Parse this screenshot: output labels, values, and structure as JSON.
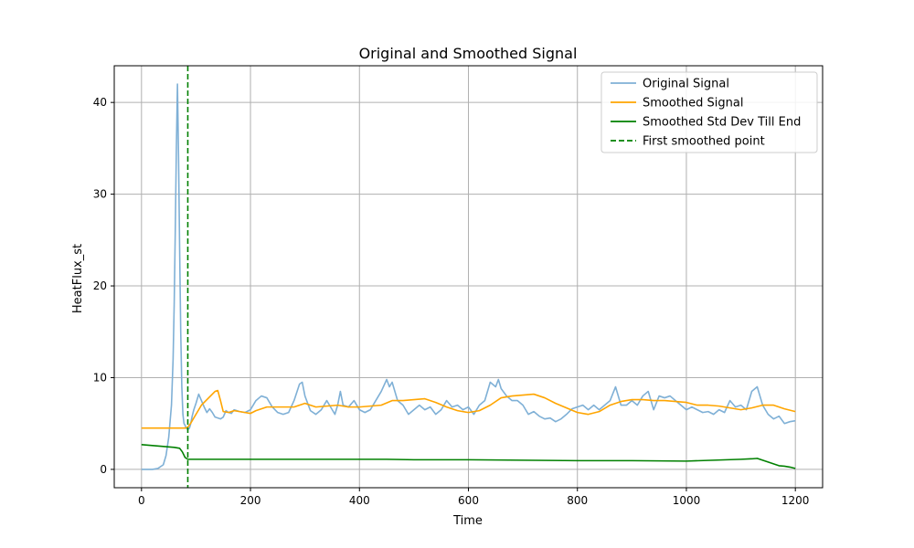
{
  "chart_data": {
    "type": "line",
    "title": "Original and Smoothed Signal",
    "xlabel": "Time",
    "ylabel": "HeatFlux_st",
    "xlim": [
      -50,
      1250
    ],
    "ylim": [
      -2,
      44
    ],
    "xticks": [
      0,
      200,
      400,
      600,
      800,
      1000,
      1200
    ],
    "yticks": [
      0,
      10,
      20,
      30,
      40
    ],
    "grid": true,
    "legend_position": "top-right",
    "series": [
      {
        "name": "Original Signal",
        "color": "#7fb0d6",
        "style": "solid",
        "x": [
          0,
          10,
          20,
          30,
          40,
          45,
          50,
          55,
          58,
          60,
          62,
          64,
          66,
          68,
          70,
          72,
          74,
          76,
          78,
          80,
          82,
          84,
          86,
          88,
          90,
          93,
          96,
          100,
          105,
          110,
          115,
          120,
          125,
          130,
          135,
          140,
          145,
          150,
          155,
          160,
          165,
          170,
          180,
          190,
          200,
          210,
          220,
          230,
          240,
          250,
          260,
          270,
          280,
          290,
          295,
          300,
          305,
          310,
          320,
          330,
          340,
          350,
          355,
          360,
          365,
          370,
          380,
          390,
          400,
          410,
          420,
          430,
          440,
          450,
          455,
          460,
          470,
          480,
          490,
          500,
          510,
          520,
          530,
          540,
          550,
          560,
          570,
          580,
          590,
          600,
          610,
          620,
          630,
          640,
          650,
          655,
          660,
          670,
          680,
          690,
          700,
          710,
          720,
          730,
          740,
          750,
          760,
          770,
          780,
          790,
          800,
          810,
          820,
          830,
          840,
          850,
          860,
          870,
          880,
          890,
          900,
          910,
          920,
          930,
          940,
          950,
          960,
          970,
          980,
          990,
          1000,
          1010,
          1020,
          1030,
          1040,
          1050,
          1060,
          1070,
          1080,
          1090,
          1100,
          1110,
          1120,
          1130,
          1140,
          1150,
          1160,
          1170,
          1180,
          1190,
          1200
        ],
        "values": [
          0,
          0,
          0,
          0.1,
          0.5,
          1.5,
          3.5,
          7,
          12,
          18,
          26,
          35,
          42,
          34,
          24,
          15,
          9,
          6,
          5,
          4.8,
          4.5,
          4.4,
          4.4,
          4.5,
          4.9,
          5.8,
          6.5,
          7.2,
          8.2,
          7.5,
          6.8,
          6.2,
          6.6,
          6.2,
          5.7,
          5.6,
          5.5,
          5.7,
          6.4,
          6.2,
          6.1,
          6.5,
          6.3,
          6.2,
          6.5,
          7.5,
          8.0,
          7.8,
          6.8,
          6.2,
          6.0,
          6.2,
          7.5,
          9.3,
          9.5,
          8.0,
          7.2,
          6.4,
          6.0,
          6.5,
          7.5,
          6.5,
          6.0,
          7.0,
          8.5,
          7.0,
          6.8,
          7.5,
          6.5,
          6.2,
          6.5,
          7.5,
          8.5,
          9.8,
          9.0,
          9.5,
          7.5,
          7.0,
          6.0,
          6.5,
          7.0,
          6.5,
          6.8,
          6.0,
          6.5,
          7.5,
          6.8,
          7.0,
          6.5,
          6.8,
          6.0,
          7.0,
          7.5,
          9.5,
          9.0,
          9.8,
          8.8,
          8.0,
          7.5,
          7.5,
          7.0,
          6.0,
          6.3,
          5.8,
          5.5,
          5.6,
          5.2,
          5.5,
          6.0,
          6.6,
          6.8,
          7.0,
          6.5,
          7.0,
          6.5,
          7.0,
          7.5,
          9.0,
          7.0,
          7.0,
          7.5,
          7.0,
          8.0,
          8.5,
          6.5,
          8.0,
          7.8,
          8.0,
          7.5,
          7.0,
          6.5,
          6.8,
          6.5,
          6.2,
          6.3,
          6.0,
          6.5,
          6.2,
          7.5,
          6.8,
          7.0,
          6.5,
          8.5,
          9.0,
          7.0,
          6.0,
          5.5,
          5.8,
          5.0,
          5.2,
          5.3
        ]
      },
      {
        "name": "Smoothed Signal",
        "color": "#ffa500",
        "style": "solid",
        "x": [
          0,
          20,
          40,
          60,
          80,
          85,
          90,
          100,
          110,
          120,
          130,
          135,
          140,
          145,
          150,
          160,
          170,
          180,
          190,
          200,
          210,
          220,
          230,
          240,
          260,
          280,
          300,
          320,
          340,
          360,
          380,
          400,
          420,
          440,
          460,
          480,
          500,
          520,
          540,
          560,
          580,
          600,
          620,
          640,
          660,
          680,
          700,
          720,
          740,
          760,
          780,
          800,
          820,
          840,
          860,
          880,
          900,
          920,
          940,
          960,
          980,
          1000,
          1020,
          1040,
          1060,
          1080,
          1100,
          1120,
          1140,
          1160,
          1180,
          1200
        ],
        "values": [
          4.5,
          4.5,
          4.5,
          4.5,
          4.5,
          4.6,
          5.0,
          6.0,
          7.0,
          7.6,
          8.2,
          8.5,
          8.6,
          7.5,
          6.3,
          6.2,
          6.4,
          6.3,
          6.2,
          6.1,
          6.4,
          6.6,
          6.8,
          6.8,
          6.8,
          6.8,
          7.2,
          6.8,
          6.9,
          7.0,
          6.8,
          6.8,
          6.9,
          7.0,
          7.5,
          7.5,
          7.6,
          7.7,
          7.3,
          6.8,
          6.4,
          6.2,
          6.4,
          7.0,
          7.8,
          8.0,
          8.1,
          8.2,
          7.8,
          7.2,
          6.7,
          6.2,
          6.0,
          6.3,
          7.0,
          7.4,
          7.6,
          7.6,
          7.5,
          7.5,
          7.4,
          7.3,
          7.0,
          7.0,
          6.9,
          6.7,
          6.5,
          6.7,
          7.0,
          7.0,
          6.6,
          6.3
        ]
      },
      {
        "name": "Smoothed Std Dev Till End",
        "color": "#008000",
        "style": "solid",
        "x": [
          0,
          20,
          40,
          60,
          70,
          75,
          80,
          85,
          100,
          150,
          200,
          300,
          400,
          450,
          500,
          600,
          700,
          800,
          900,
          1000,
          1050,
          1100,
          1120,
          1130,
          1140,
          1150,
          1160,
          1170,
          1180,
          1190,
          1200
        ],
        "values": [
          2.7,
          2.6,
          2.5,
          2.4,
          2.3,
          1.9,
          1.3,
          1.1,
          1.1,
          1.1,
          1.1,
          1.1,
          1.1,
          1.1,
          1.05,
          1.05,
          1.0,
          0.95,
          0.95,
          0.9,
          1.0,
          1.1,
          1.15,
          1.2,
          1.0,
          0.8,
          0.6,
          0.4,
          0.35,
          0.25,
          0.1
        ]
      }
    ],
    "vlines": [
      {
        "name": "First smoothed point",
        "x": 85,
        "color": "#008000",
        "style": "dashed"
      }
    ]
  }
}
